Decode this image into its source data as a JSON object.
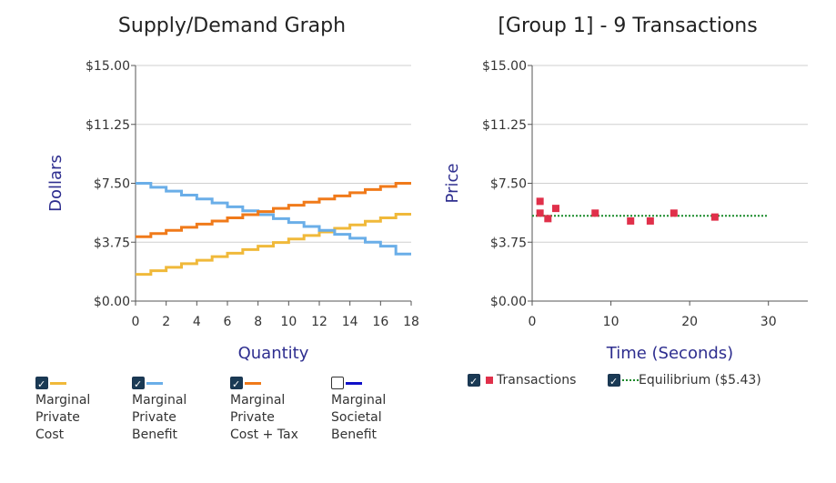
{
  "charts": {
    "left_title": "Supply/Demand Graph",
    "right_title": "[Group 1] - 9 Transactions"
  },
  "legend_left": [
    {
      "label_lines": [
        "Marginal",
        "Private",
        "Cost"
      ],
      "color": "#f0b93a",
      "checked": true
    },
    {
      "label_lines": [
        "Marginal",
        "Private",
        "Benefit"
      ],
      "color": "#6aaee8",
      "checked": true
    },
    {
      "label_lines": [
        "Marginal",
        "Private",
        "Cost + Tax"
      ],
      "color": "#f07a1a",
      "checked": true
    },
    {
      "label_lines": [
        "Marginal",
        "Societal",
        "Benefit"
      ],
      "color": "#1010c8",
      "checked": false
    }
  ],
  "legend_right": [
    {
      "label": "Transactions",
      "color": "#e0304a",
      "checked": true
    },
    {
      "label": "Equilibrium ($5.43)",
      "color": "#1a8a2a",
      "checked": true
    }
  ],
  "chart_data": [
    {
      "type": "line",
      "title": "Supply/Demand Graph",
      "xlabel": "Quantity",
      "ylabel": "Dollars",
      "xlim": [
        0,
        18
      ],
      "ylim": [
        0,
        15
      ],
      "x_ticks": [
        "0",
        "2",
        "4",
        "6",
        "8",
        "10",
        "12",
        "14",
        "16",
        "18"
      ],
      "y_ticks": [
        "$0.00",
        "$3.75",
        "$7.50",
        "$11.25",
        "$15.00"
      ],
      "grid": true,
      "step": true,
      "series": [
        {
          "name": "Marginal Private Cost",
          "color": "#f0b93a",
          "values": [
            1.7,
            1.93,
            2.15,
            2.38,
            2.6,
            2.83,
            3.05,
            3.28,
            3.5,
            3.73,
            3.95,
            4.18,
            4.4,
            4.63,
            4.85,
            5.08,
            5.3,
            5.53
          ]
        },
        {
          "name": "Marginal Private Benefit",
          "color": "#6aaee8",
          "values": [
            7.5,
            7.25,
            7.0,
            6.75,
            6.5,
            6.25,
            6.0,
            5.75,
            5.5,
            5.25,
            5.0,
            4.75,
            4.5,
            4.25,
            4.0,
            3.75,
            3.5,
            3.0
          ]
        },
        {
          "name": "Marginal Private Cost + Tax",
          "color": "#f07a1a",
          "values": [
            4.1,
            4.3,
            4.5,
            4.7,
            4.9,
            5.1,
            5.3,
            5.5,
            5.7,
            5.9,
            6.1,
            6.3,
            6.5,
            6.7,
            6.9,
            7.1,
            7.3,
            7.5
          ]
        }
      ]
    },
    {
      "type": "scatter",
      "title": "[Group 1] - 9 Transactions",
      "xlabel": "Time (Seconds)",
      "ylabel": "Price",
      "xlim": [
        0,
        35
      ],
      "ylim": [
        0,
        15
      ],
      "x_ticks": [
        "0",
        "10",
        "20",
        "30"
      ],
      "y_ticks": [
        "$0.00",
        "$3.75",
        "$7.50",
        "$11.25",
        "$15.00"
      ],
      "grid": true,
      "series": [
        {
          "name": "Transactions",
          "color": "#e0304a",
          "points": [
            [
              1,
              6.35
            ],
            [
              1,
              5.6
            ],
            [
              2,
              5.25
            ],
            [
              3,
              5.9
            ],
            [
              8,
              5.6
            ],
            [
              12.5,
              5.1
            ],
            [
              15,
              5.1
            ],
            [
              18,
              5.6
            ],
            [
              23.2,
              5.35
            ]
          ]
        }
      ],
      "equilibrium": {
        "value": 5.43,
        "x_range": [
          0,
          30
        ],
        "color": "#1a8a2a"
      }
    }
  ]
}
